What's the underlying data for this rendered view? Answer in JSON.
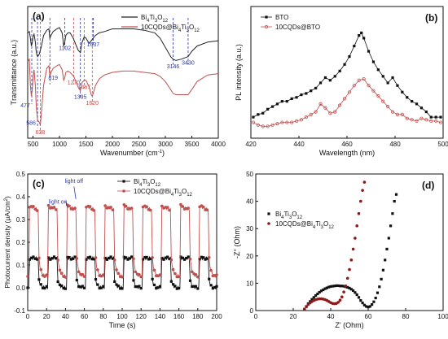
{
  "chart_data": [
    {
      "type": "line",
      "label": "(a)",
      "xlabel": "Wavenumber (cm",
      "xlabel_sup": "-1",
      "xlabel_tail": ")",
      "ylabel": "Transmittance (a.u.)",
      "xlim": [
        400,
        4000
      ],
      "xticks": [
        500,
        1000,
        1500,
        2000,
        2500,
        3000,
        3500,
        4000
      ],
      "ylim": [
        0,
        100
      ],
      "legend_position": "top-right",
      "series": [
        {
          "name": "Bi4Ti3O12",
          "legend_base": "Bi",
          "legend_parts": [
            [
              "Bi",
              ""
            ],
            [
              "4",
              "sub"
            ],
            [
              "Ti",
              ""
            ],
            [
              "3",
              "sub"
            ],
            [
              "O",
              ""
            ],
            [
              "12",
              "sub"
            ]
          ],
          "color": "#222222",
          "x": [
            400,
            430,
            450,
            470,
            485,
            500,
            520,
            545,
            560,
            575,
            590,
            620,
            660,
            700,
            760,
            800,
            819,
            840,
            880,
            950,
            1000,
            1050,
            1080,
            1100,
            1120,
            1160,
            1200,
            1260,
            1300,
            1350,
            1395,
            1420,
            1467,
            1500,
            1560,
            1600,
            1637,
            1680,
            1750,
            1850,
            2000,
            2200,
            2400,
            2600,
            2800,
            2900,
            3000,
            3100,
            3146,
            3200,
            3300,
            3430,
            3500,
            3600,
            3800,
            4000
          ],
          "y": [
            80,
            81,
            76,
            70,
            72,
            77,
            79,
            73,
            66,
            63,
            62,
            64,
            70,
            78,
            82,
            83,
            76,
            78,
            81,
            83,
            84,
            80,
            70,
            73,
            78,
            80,
            80,
            76,
            72,
            67,
            65,
            72,
            77,
            76,
            72,
            74,
            76,
            78,
            80,
            81,
            83,
            83,
            83,
            82,
            80,
            76,
            69,
            62,
            60,
            59,
            60,
            62,
            66,
            70,
            73,
            74
          ]
        },
        {
          "name": "10CQDs@Bi4Ti3O12",
          "legend_base": "10CQDs@Bi",
          "legend_parts": [
            [
              "10CQDs@Bi",
              ""
            ],
            [
              "4",
              "sub"
            ],
            [
              "Ti",
              ""
            ],
            [
              "3",
              "sub"
            ],
            [
              "O",
              ""
            ],
            [
              "12",
              "sub"
            ]
          ],
          "color": "#c0504d",
          "x": [
            400,
            430,
            450,
            470,
            485,
            500,
            520,
            545,
            560,
            575,
            586,
            600,
            620,
            638,
            660,
            700,
            760,
            800,
            819,
            840,
            880,
            950,
            1000,
            1050,
            1080,
            1100,
            1120,
            1160,
            1200,
            1270,
            1300,
            1350,
            1395,
            1420,
            1467,
            1500,
            1560,
            1600,
            1620,
            1637,
            1680,
            1750,
            1850,
            2000,
            2200,
            2400,
            2600,
            2800,
            2900,
            3000,
            3100,
            3146,
            3200,
            3300,
            3430,
            3500,
            3600,
            3800,
            4000
          ],
          "y": [
            58,
            60,
            40,
            32,
            36,
            46,
            52,
            40,
            26,
            18,
            14,
            13,
            12,
            10,
            20,
            40,
            53,
            55,
            47,
            50,
            53,
            55,
            56,
            52,
            44,
            46,
            50,
            51,
            50,
            47,
            44,
            39,
            36,
            42,
            44,
            44,
            39,
            33,
            32,
            34,
            40,
            45,
            48,
            50,
            51,
            51,
            50,
            49,
            47,
            43,
            37,
            34,
            33,
            33,
            33,
            37,
            43,
            48,
            49
          ]
        }
      ],
      "vlines": [
        {
          "x": 477,
          "y": 32,
          "label": "477",
          "color": "#2b39b5",
          "pos": "left-low"
        },
        {
          "x": 586,
          "y": 14,
          "label": "586",
          "color": "#2b39b5",
          "pos": "left"
        },
        {
          "x": 638,
          "y": 10,
          "label": "638",
          "color": "#c0504d",
          "pos": "below"
        },
        {
          "x": 819,
          "y": 47,
          "label": "819",
          "color": "#2b39b5",
          "pos": "right"
        },
        {
          "x": 1102,
          "y": 73,
          "label": "1102",
          "color": "#2b39b5",
          "pos": "mid"
        },
        {
          "x": 1270,
          "y": 47,
          "label": "1270",
          "color": "#c0504d",
          "pos": "mid"
        },
        {
          "x": 1395,
          "y": 36,
          "label": "1395",
          "color": "#2b39b5",
          "pos": "mid"
        },
        {
          "x": 1467,
          "y": 44,
          "label": "1467",
          "color": "#c0504d",
          "pos": "below"
        },
        {
          "x": 1620,
          "y": 32,
          "label": "1620",
          "color": "#c0504d",
          "pos": "below"
        },
        {
          "x": 1637,
          "y": 76,
          "label": "1637",
          "color": "#2b39b5",
          "pos": "mid"
        },
        {
          "x": 3146,
          "y": 60,
          "label": "3146",
          "color": "#2b39b5",
          "pos": "below"
        },
        {
          "x": 3430,
          "y": 62,
          "label": "3430",
          "color": "#2b39b5",
          "pos": "mid"
        }
      ]
    },
    {
      "type": "line",
      "label": "(b)",
      "xlabel": "Wavelength (nm)",
      "ylabel": "PL intensity (a.u.)",
      "xlim": [
        420,
        500
      ],
      "xticks": [
        420,
        440,
        460,
        480,
        500
      ],
      "ylim": [
        0,
        100
      ],
      "legend_position": "top-left",
      "series": [
        {
          "name": "BTO",
          "color": "#111111",
          "marker": "square",
          "x": [
            421,
            423,
            425,
            427,
            429,
            431,
            433,
            435,
            437,
            439,
            441,
            443,
            445,
            447,
            449,
            451,
            453,
            455,
            457,
            459,
            461,
            463,
            465,
            466,
            467,
            469,
            471,
            473,
            475,
            477,
            479,
            481,
            483,
            485,
            487,
            489,
            491,
            493,
            495,
            497,
            499
          ],
          "y": [
            16,
            18,
            19,
            22,
            24,
            26,
            28,
            28,
            30,
            31,
            33,
            34,
            36,
            38,
            42,
            46,
            44,
            47,
            51,
            56,
            62,
            70,
            78,
            80,
            76,
            66,
            58,
            52,
            47,
            42,
            46,
            40,
            35,
            31,
            28,
            26,
            23,
            20,
            16,
            16,
            16
          ]
        },
        {
          "name": "10CQDs@BTO",
          "color": "#c0504d",
          "marker": "circle-open",
          "x": [
            421,
            423,
            425,
            427,
            429,
            431,
            433,
            435,
            437,
            439,
            441,
            443,
            445,
            447,
            449,
            451,
            453,
            455,
            457,
            459,
            461,
            463,
            465,
            467,
            469,
            471,
            473,
            475,
            477,
            479,
            481,
            483,
            485,
            487,
            489,
            491,
            493,
            495,
            497,
            499
          ],
          "y": [
            12,
            10,
            9,
            9,
            10,
            11,
            12,
            12,
            12,
            13,
            14,
            16,
            18,
            20,
            26,
            23,
            19,
            20,
            25,
            30,
            35,
            40,
            44,
            45,
            40,
            36,
            32,
            28,
            24,
            20,
            18,
            18,
            15,
            14,
            13,
            15,
            14,
            13,
            13,
            12
          ]
        }
      ]
    },
    {
      "type": "line",
      "label": "(c)",
      "xlabel": "Time (s)",
      "ylabel": "Photocurrent density (μA/cm",
      "ylabel_sup": "2",
      "ylabel_tail": ")",
      "xlim": [
        0,
        200
      ],
      "xticks": [
        0,
        20,
        40,
        60,
        80,
        100,
        120,
        140,
        160,
        180,
        200
      ],
      "ylim": [
        -0.1,
        0.5
      ],
      "yticks": [
        -0.1,
        0.0,
        0.1,
        0.2,
        0.3,
        0.4,
        0.5
      ],
      "legend_position": "top-right",
      "annotations": [
        {
          "text": "light off",
          "x": 49,
          "y": 0.46
        },
        {
          "text": "light on",
          "x": 32,
          "y": 0.37
        }
      ],
      "light_cycle": {
        "period": 20,
        "on_duration": 10,
        "first_on": 2,
        "cycles": 10
      },
      "series": [
        {
          "name": "Bi4Ti3O12",
          "legend_parts": [
            [
              "Bi",
              ""
            ],
            [
              "4",
              "sub"
            ],
            [
              "Ti",
              ""
            ],
            [
              "3",
              "sub"
            ],
            [
              "O",
              ""
            ],
            [
              "12",
              "sub"
            ]
          ],
          "color": "#111111",
          "marker": "square",
          "on_value": 0.13,
          "off_value": 0.0
        },
        {
          "name": "10CQDs@Bi4Ti3O12",
          "legend_parts": [
            [
              "10CQDs@Bi",
              ""
            ],
            [
              "4",
              "sub"
            ],
            [
              "Ti",
              ""
            ],
            [
              "3",
              "sub"
            ],
            [
              "O",
              ""
            ],
            [
              "12",
              "sub"
            ]
          ],
          "color": "#c0504d",
          "marker": "circle",
          "on_value": 0.36,
          "off_value": 0.05
        }
      ]
    },
    {
      "type": "scatter",
      "label": "(d)",
      "xlabel": "Z' (Ohm)",
      "ylabel": "-Z'' (Ohm)",
      "xlim": [
        0,
        100
      ],
      "xticks": [
        0,
        20,
        40,
        60,
        80,
        100
      ],
      "ylim": [
        0,
        50
      ],
      "yticks": [
        0,
        10,
        20,
        30,
        40,
        50
      ],
      "legend_position": "middle-left",
      "series": [
        {
          "name": "Bi4Ti3O12",
          "legend_parts": [
            [
              "Bi",
              ""
            ],
            [
              "4",
              "sub"
            ],
            [
              "Ti",
              ""
            ],
            [
              "3",
              "sub"
            ],
            [
              "O",
              ""
            ],
            [
              "12",
              "sub"
            ]
          ],
          "color": "#111111",
          "marker": "square",
          "x": [
            26,
            27,
            28,
            29,
            30,
            31,
            32,
            33,
            34,
            35,
            36,
            37,
            38,
            39,
            40,
            41,
            42,
            43,
            44,
            45,
            46,
            47,
            48,
            49,
            50,
            51,
            52,
            53,
            54,
            55,
            56,
            57,
            58,
            59,
            60,
            61,
            62,
            63,
            64,
            65,
            66,
            67,
            68,
            69,
            70,
            71,
            72,
            73,
            74,
            75
          ],
          "y": [
            0.5,
            1.5,
            2.5,
            3.3,
            4.1,
            4.8,
            5.5,
            6.1,
            6.7,
            7.2,
            7.6,
            8.0,
            8.3,
            8.6,
            8.8,
            8.9,
            9.0,
            9.1,
            9.1,
            9.0,
            9.0,
            8.9,
            8.7,
            8.5,
            8.2,
            7.8,
            7.3,
            6.6,
            5.8,
            4.8,
            3.7,
            2.8,
            2.0,
            1.5,
            1.3,
            1.5,
            2.2,
            3.2,
            4.6,
            6.5,
            8.7,
            11.5,
            14.8,
            18.5,
            22.5,
            26.5,
            31.0,
            35.5,
            40.0,
            42.5
          ]
        },
        {
          "name": "10CQDs@Bi4Ti3O12",
          "legend_parts": [
            [
              "10CQDs@Bi",
              ""
            ],
            [
              "4",
              "sub"
            ],
            [
              "Ti",
              ""
            ],
            [
              "3",
              "sub"
            ],
            [
              "O",
              ""
            ],
            [
              "12",
              "sub"
            ]
          ],
          "color": "#8b1a1a",
          "marker": "circle",
          "x": [
            26,
            27,
            28,
            29,
            30,
            31,
            32,
            33,
            34,
            35,
            36,
            37,
            38,
            39,
            40,
            41,
            42,
            43,
            44,
            45,
            46,
            47,
            48,
            49,
            50,
            51,
            52,
            53,
            54,
            55,
            56,
            57,
            58
          ],
          "y": [
            0.5,
            1.4,
            2.2,
            2.8,
            3.3,
            3.7,
            4.0,
            4.2,
            4.3,
            4.3,
            4.2,
            4.0,
            3.7,
            3.3,
            2.9,
            2.6,
            2.5,
            2.6,
            3.0,
            3.8,
            5.0,
            6.8,
            9.0,
            11.8,
            15.0,
            18.5,
            22.5,
            26.5,
            31.0,
            35.5,
            40.0,
            44.0,
            47.0
          ]
        }
      ]
    }
  ]
}
